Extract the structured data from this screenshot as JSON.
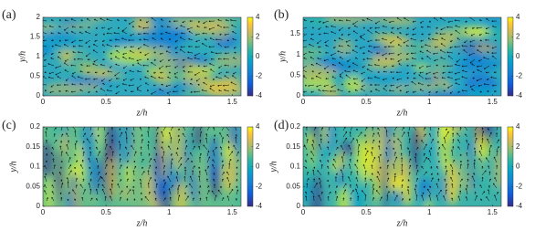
{
  "chart_data": [
    {
      "type": "contour",
      "panel_label": "(a)",
      "xlabel": "z/h",
      "ylabel": "y/h",
      "xlim": [
        0,
        1.57
      ],
      "xticks": [
        0,
        0.5,
        1,
        1.5
      ],
      "ylim": [
        0,
        2
      ],
      "yticks": [
        0,
        0.5,
        1,
        1.5,
        2
      ],
      "clim": [
        -4,
        4
      ],
      "cticks": [
        -4,
        -2,
        0,
        2,
        4
      ]
    },
    {
      "type": "contour",
      "panel_label": "(b)",
      "xlabel": "z/h",
      "ylabel": "y/h",
      "xlim": [
        0,
        1.57
      ],
      "xticks": [
        0,
        0.5,
        1,
        1.5
      ],
      "ylim": [
        0,
        1.9
      ],
      "yticks": [
        0,
        0.5,
        1,
        1.5
      ],
      "clim": [
        -4,
        4
      ],
      "cticks": [
        -4,
        -2,
        0,
        2,
        4
      ]
    },
    {
      "type": "contour",
      "panel_label": "(c)",
      "xlabel": "z/h",
      "ylabel": "y/h",
      "xlim": [
        0,
        1.57
      ],
      "xticks": [
        0,
        0.5,
        1,
        1.5
      ],
      "ylim": [
        0,
        0.2
      ],
      "yticks": [
        0,
        0.05,
        0.1,
        0.15,
        0.2
      ],
      "clim": [
        -4,
        4
      ],
      "cticks": [
        -4,
        -2,
        0,
        2,
        4
      ]
    },
    {
      "type": "contour",
      "panel_label": "(d)",
      "xlabel": "z/h",
      "ylabel": "y/h",
      "xlim": [
        0,
        1.57
      ],
      "xticks": [
        0,
        0.5,
        1,
        1.5
      ],
      "ylim": [
        0,
        0.2
      ],
      "yticks": [
        0,
        0.05,
        0.1,
        0.15,
        0.2
      ],
      "clim": [
        -4,
        4
      ],
      "cticks": [
        -4,
        -2,
        0,
        2,
        4
      ]
    }
  ]
}
